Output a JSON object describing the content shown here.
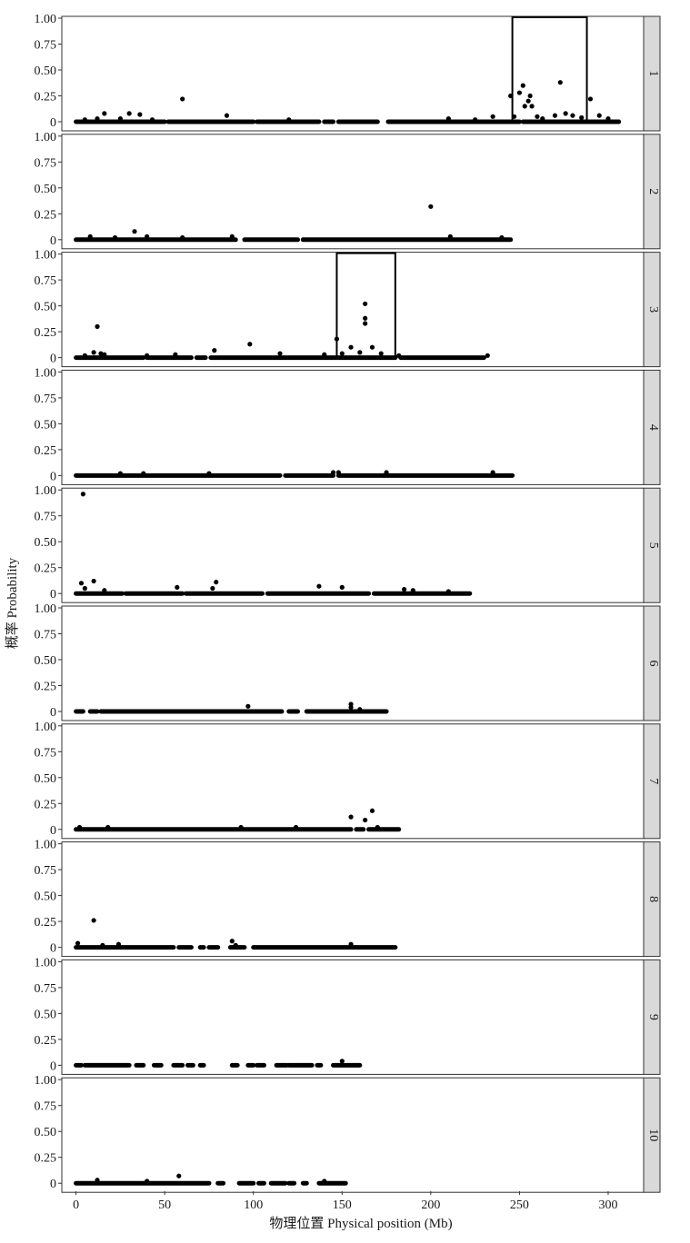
{
  "chart_data": {
    "type": "scatter",
    "xlabel": "物理位置 Physical position (Mb)",
    "ylabel": "概率 Probability",
    "xlim": [
      -8,
      320
    ],
    "ylim": [
      0,
      1
    ],
    "x_ticks": [
      0,
      50,
      100,
      150,
      200,
      250,
      300
    ],
    "y_ticks": [
      0,
      0.25,
      0.5,
      0.75,
      1.0
    ],
    "y_tick_labels": [
      "0",
      "0.25",
      "0.50",
      "0.75",
      "1.00"
    ],
    "point_color": "#000000",
    "strip_fill": "#d9d9d9",
    "panels": [
      {
        "label": "1",
        "baseline_segments": [
          [
            0,
            50
          ],
          [
            52,
            100
          ],
          [
            102,
            137
          ],
          [
            140,
            145
          ],
          [
            148,
            170
          ],
          [
            176,
            250
          ],
          [
            252,
            306
          ]
        ],
        "highlight_box": [
          246,
          288
        ],
        "points": [
          [
            5,
            0.02
          ],
          [
            12,
            0.03
          ],
          [
            16,
            0.08
          ],
          [
            25,
            0.03
          ],
          [
            30,
            0.08
          ],
          [
            36,
            0.07
          ],
          [
            43,
            0.02
          ],
          [
            60,
            0.22
          ],
          [
            85,
            0.06
          ],
          [
            120,
            0.02
          ],
          [
            210,
            0.03
          ],
          [
            225,
            0.02
          ],
          [
            235,
            0.05
          ],
          [
            245,
            0.25
          ],
          [
            247,
            0.05
          ],
          [
            250,
            0.28
          ],
          [
            252,
            0.35
          ],
          [
            253,
            0.15
          ],
          [
            255,
            0.2
          ],
          [
            256,
            0.25
          ],
          [
            257,
            0.15
          ],
          [
            260,
            0.05
          ],
          [
            263,
            0.03
          ],
          [
            270,
            0.06
          ],
          [
            273,
            0.38
          ],
          [
            276,
            0.08
          ],
          [
            280,
            0.06
          ],
          [
            285,
            0.04
          ],
          [
            290,
            0.22
          ],
          [
            295,
            0.06
          ],
          [
            300,
            0.03
          ]
        ]
      },
      {
        "label": "2",
        "baseline_segments": [
          [
            0,
            90
          ],
          [
            95,
            125
          ],
          [
            128,
            245
          ]
        ],
        "highlight_box": null,
        "points": [
          [
            8,
            0.03
          ],
          [
            22,
            0.02
          ],
          [
            33,
            0.08
          ],
          [
            40,
            0.03
          ],
          [
            60,
            0.02
          ],
          [
            88,
            0.03
          ],
          [
            200,
            0.32
          ],
          [
            211,
            0.03
          ],
          [
            240,
            0.02
          ]
        ]
      },
      {
        "label": "3",
        "baseline_segments": [
          [
            0,
            38
          ],
          [
            40,
            65
          ],
          [
            68,
            73
          ],
          [
            76,
            180
          ],
          [
            183,
            230
          ]
        ],
        "highlight_box": [
          147,
          180
        ],
        "points": [
          [
            5,
            0.02
          ],
          [
            10,
            0.05
          ],
          [
            12,
            0.3
          ],
          [
            14,
            0.04
          ],
          [
            16,
            0.03
          ],
          [
            40,
            0.02
          ],
          [
            56,
            0.03
          ],
          [
            78,
            0.07
          ],
          [
            98,
            0.13
          ],
          [
            115,
            0.04
          ],
          [
            140,
            0.03
          ],
          [
            147,
            0.18
          ],
          [
            150,
            0.04
          ],
          [
            155,
            0.1
          ],
          [
            160,
            0.05
          ],
          [
            163,
            0.52
          ],
          [
            163,
            0.38
          ],
          [
            163,
            0.33
          ],
          [
            167,
            0.1
          ],
          [
            172,
            0.04
          ],
          [
            182,
            0.02
          ],
          [
            232,
            0.02
          ]
        ]
      },
      {
        "label": "4",
        "baseline_segments": [
          [
            0,
            115
          ],
          [
            118,
            145
          ],
          [
            148,
            246
          ]
        ],
        "highlight_box": null,
        "points": [
          [
            25,
            0.02
          ],
          [
            38,
            0.02
          ],
          [
            75,
            0.02
          ],
          [
            145,
            0.03
          ],
          [
            148,
            0.03
          ],
          [
            175,
            0.03
          ],
          [
            235,
            0.03
          ]
        ]
      },
      {
        "label": "5",
        "baseline_segments": [
          [
            0,
            26
          ],
          [
            28,
            60
          ],
          [
            62,
            105
          ],
          [
            108,
            165
          ],
          [
            168,
            222
          ]
        ],
        "highlight_box": null,
        "points": [
          [
            4,
            0.96
          ],
          [
            3,
            0.1
          ],
          [
            5,
            0.05
          ],
          [
            10,
            0.12
          ],
          [
            16,
            0.03
          ],
          [
            57,
            0.06
          ],
          [
            77,
            0.05
          ],
          [
            79,
            0.11
          ],
          [
            137,
            0.07
          ],
          [
            150,
            0.06
          ],
          [
            185,
            0.04
          ],
          [
            190,
            0.03
          ],
          [
            210,
            0.02
          ]
        ]
      },
      {
        "label": "6",
        "baseline_segments": [
          [
            0,
            4
          ],
          [
            8,
            12
          ],
          [
            14,
            116
          ],
          [
            120,
            125
          ],
          [
            130,
            175
          ]
        ],
        "highlight_box": null,
        "points": [
          [
            97,
            0.05
          ],
          [
            155,
            0.07
          ],
          [
            155,
            0.04
          ],
          [
            160,
            0.02
          ]
        ]
      },
      {
        "label": "7",
        "baseline_segments": [
          [
            0,
            155
          ],
          [
            158,
            162
          ],
          [
            165,
            182
          ]
        ],
        "highlight_box": null,
        "points": [
          [
            2,
            0.02
          ],
          [
            18,
            0.02
          ],
          [
            93,
            0.02
          ],
          [
            124,
            0.02
          ],
          [
            155,
            0.12
          ],
          [
            163,
            0.09
          ],
          [
            167,
            0.18
          ],
          [
            170,
            0.02
          ]
        ]
      },
      {
        "label": "8",
        "baseline_segments": [
          [
            0,
            55
          ],
          [
            58,
            65
          ],
          [
            70,
            72
          ],
          [
            75,
            80
          ],
          [
            87,
            95
          ],
          [
            100,
            180
          ]
        ],
        "highlight_box": null,
        "points": [
          [
            1,
            0.04
          ],
          [
            10,
            0.26
          ],
          [
            15,
            0.02
          ],
          [
            24,
            0.03
          ],
          [
            88,
            0.06
          ],
          [
            90,
            0.02
          ],
          [
            155,
            0.03
          ]
        ]
      },
      {
        "label": "9",
        "baseline_segments": [
          [
            0,
            3
          ],
          [
            5,
            30
          ],
          [
            34,
            38
          ],
          [
            44,
            48
          ],
          [
            55,
            60
          ],
          [
            63,
            66
          ],
          [
            70,
            72
          ],
          [
            88,
            91
          ],
          [
            97,
            100
          ],
          [
            102,
            106
          ],
          [
            113,
            119
          ],
          [
            120,
            133
          ],
          [
            136,
            138
          ],
          [
            145,
            160
          ]
        ],
        "highlight_box": null,
        "points": [
          [
            150,
            0.04
          ]
        ]
      },
      {
        "label": "10",
        "baseline_segments": [
          [
            0,
            75
          ],
          [
            80,
            83
          ],
          [
            92,
            100
          ],
          [
            103,
            106
          ],
          [
            110,
            118
          ],
          [
            120,
            123
          ],
          [
            128,
            130
          ],
          [
            137,
            152
          ]
        ],
        "highlight_box": null,
        "points": [
          [
            12,
            0.03
          ],
          [
            40,
            0.02
          ],
          [
            58,
            0.07
          ],
          [
            140,
            0.02
          ]
        ]
      }
    ]
  }
}
